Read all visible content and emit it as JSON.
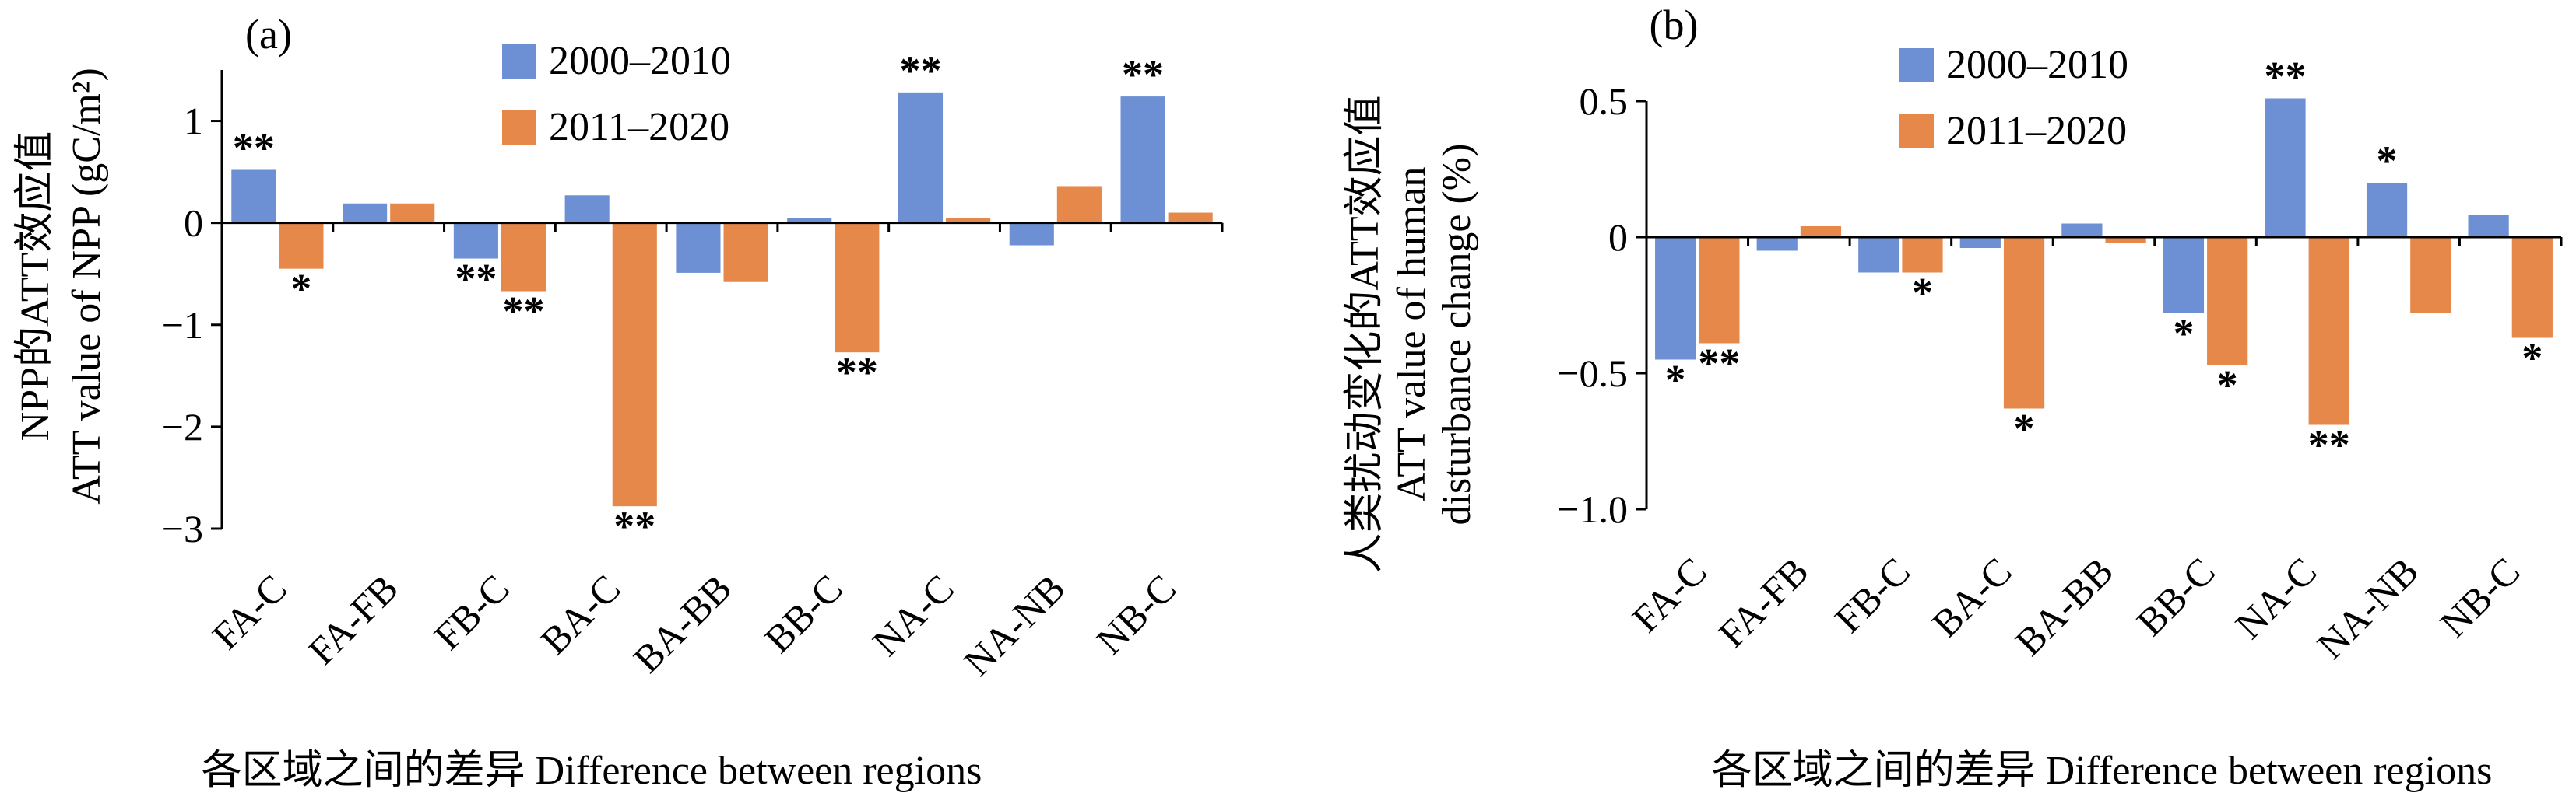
{
  "chart_data": [
    {
      "type": "bar",
      "panel_label": "(a)",
      "categories": [
        "FA-C",
        "FA-FB",
        "FB-C",
        "BA-C",
        "BA-BB",
        "BB-C",
        "NA-C",
        "NA-NB",
        "NB-C"
      ],
      "series": [
        {
          "name": "2000–2010",
          "color": "#6d90d4",
          "values": [
            0.52,
            0.19,
            -0.35,
            0.27,
            -0.49,
            0.05,
            1.28,
            -0.22,
            1.24
          ],
          "significance": [
            "**",
            "",
            "**",
            "",
            "",
            "",
            "**",
            "",
            "**"
          ]
        },
        {
          "name": "2011–2020",
          "color": "#e5884a",
          "values": [
            -0.45,
            0.19,
            -0.67,
            -2.78,
            -0.58,
            -1.27,
            0.05,
            0.36,
            0.1
          ],
          "significance": [
            "*",
            "",
            "**",
            "**",
            "",
            "**",
            "",
            "",
            ""
          ]
        }
      ],
      "ylabel_cn": "NPP的ATT效应值",
      "ylabel_en": "ATT value of NPP (gC/m²)",
      "xlabel": "各区域之间的差异 Difference between regions",
      "ylim": [
        -3,
        1.5
      ],
      "yticks": [
        1,
        0,
        -1,
        -2,
        -3
      ],
      "ytick_labels": [
        "1",
        "0",
        "−1",
        "−2",
        "−3"
      ],
      "legend_position": "top-center",
      "grid": false
    },
    {
      "type": "bar",
      "panel_label": "(b)",
      "categories": [
        "FA-C",
        "FA-FB",
        "FB-C",
        "BA-C",
        "BA-BB",
        "BB-C",
        "NA-C",
        "NA-NB",
        "NB-C"
      ],
      "series": [
        {
          "name": "2000–2010",
          "color": "#6d90d4",
          "values": [
            -0.45,
            -0.05,
            -0.13,
            -0.04,
            0.05,
            -0.28,
            0.51,
            0.2,
            0.08
          ],
          "significance": [
            "*",
            "",
            "",
            "",
            "",
            "*",
            "**",
            "*",
            ""
          ]
        },
        {
          "name": "2011–2020",
          "color": "#e5884a",
          "values": [
            -0.39,
            0.04,
            -0.13,
            -0.63,
            -0.02,
            -0.47,
            -0.69,
            -0.28,
            -0.37
          ],
          "significance": [
            "**",
            "",
            "*",
            "*",
            "",
            "*",
            "**",
            "",
            "*"
          ]
        }
      ],
      "ylabel_cn": "人类扰动变化的ATT效应值",
      "ylabel_en_line1": "ATT value of human",
      "ylabel_en_line2": "disturbance change (%)",
      "xlabel": "各区域之间的差异 Difference between regions",
      "ylim": [
        -1.0,
        0.5
      ],
      "yticks": [
        0.5,
        0,
        -0.5,
        -1.0
      ],
      "ytick_labels": [
        "0.5",
        "0",
        "−0.5",
        "−1.0"
      ],
      "legend_position": "top-center",
      "grid": false
    }
  ]
}
